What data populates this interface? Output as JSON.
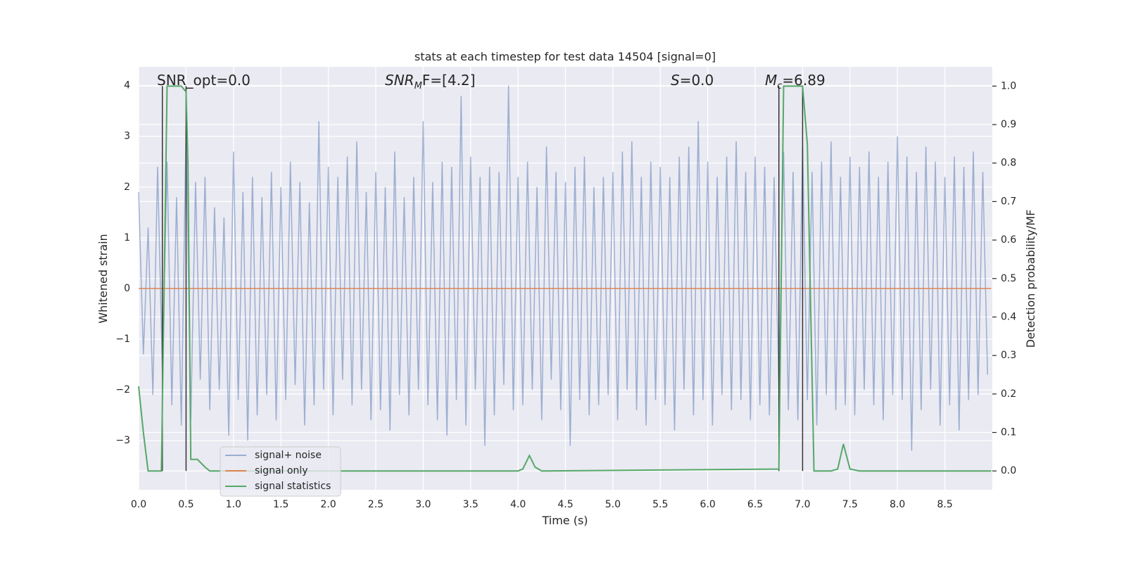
{
  "chart_data": {
    "type": "line",
    "title": "stats at each timestep for test data 14504 [signal=0]",
    "xlabel": "Time (s)",
    "ylabel": "Whitened strain",
    "y2label": "Detection probability/MF",
    "xlim": [
      0,
      9.0
    ],
    "xticks": [
      {
        "value": 0,
        "label": "0.0"
      },
      {
        "value": 0.5,
        "label": "0.5"
      },
      {
        "value": 1,
        "label": "1.0"
      },
      {
        "value": 1.5,
        "label": "1.5"
      },
      {
        "value": 2,
        "label": "2.0"
      },
      {
        "value": 2.5,
        "label": "2.5"
      },
      {
        "value": 3,
        "label": "3.0"
      },
      {
        "value": 3.5,
        "label": "3.5"
      },
      {
        "value": 4,
        "label": "4.0"
      },
      {
        "value": 4.5,
        "label": "4.5"
      },
      {
        "value": 5,
        "label": "5.0"
      },
      {
        "value": 5.5,
        "label": "5.5"
      },
      {
        "value": 6,
        "label": "6.0"
      },
      {
        "value": 6.5,
        "label": "6.5"
      },
      {
        "value": 7,
        "label": "7.0"
      },
      {
        "value": 7.5,
        "label": "7.5"
      },
      {
        "value": 8,
        "label": "8.0"
      },
      {
        "value": 8.5,
        "label": "8.5"
      }
    ],
    "ylim": [
      -3.97,
      4.37
    ],
    "yticks": [
      {
        "value": -3,
        "label": "−3"
      },
      {
        "value": -2,
        "label": "−2"
      },
      {
        "value": -1,
        "label": "−1"
      },
      0,
      1,
      2,
      3,
      4
    ],
    "y2lim": [
      -0.049,
      1.05
    ],
    "y2ticks": [
      {
        "value": 0,
        "label": "0.0"
      },
      {
        "value": 0.1,
        "label": "0.1"
      },
      {
        "value": 0.2,
        "label": "0.2"
      },
      {
        "value": 0.3,
        "label": "0.3"
      },
      {
        "value": 0.4,
        "label": "0.4"
      },
      {
        "value": 0.5,
        "label": "0.5"
      },
      {
        "value": 0.6,
        "label": "0.6"
      },
      {
        "value": 0.7,
        "label": "0.7"
      },
      {
        "value": 0.8,
        "label": "0.8"
      },
      {
        "value": 0.9,
        "label": "0.9"
      },
      {
        "value": 1,
        "label": "1.0"
      }
    ],
    "grid": true,
    "legend": "lower left",
    "series": [
      {
        "name": "signal+ noise",
        "color": "#4c72b0",
        "alpha": 0.5,
        "x": [
          0,
          0.05,
          0.1,
          0.15,
          0.2,
          0.25,
          0.3,
          0.35,
          0.4,
          0.45,
          0.5,
          0.55,
          0.6,
          0.65,
          0.7,
          0.75,
          0.8,
          0.85,
          0.9,
          0.95,
          1,
          1.05,
          1.1,
          1.15,
          1.2,
          1.25,
          1.3,
          1.35,
          1.4,
          1.45,
          1.5,
          1.55,
          1.6,
          1.65,
          1.7,
          1.75,
          1.8,
          1.85,
          1.9,
          1.95,
          2,
          2.05,
          2.1,
          2.15,
          2.2,
          2.25,
          2.3,
          2.35,
          2.4,
          2.45,
          2.5,
          2.55,
          2.6,
          2.65,
          2.7,
          2.75,
          2.8,
          2.85,
          2.9,
          2.95,
          3,
          3.05,
          3.1,
          3.15,
          3.2,
          3.25,
          3.3,
          3.35,
          3.4,
          3.45,
          3.5,
          3.55,
          3.6,
          3.65,
          3.7,
          3.75,
          3.8,
          3.85,
          3.9,
          3.95,
          4,
          4.05,
          4.1,
          4.15,
          4.2,
          4.25,
          4.3,
          4.35,
          4.4,
          4.45,
          4.5,
          4.55,
          4.6,
          4.65,
          4.7,
          4.75,
          4.8,
          4.85,
          4.9,
          4.95,
          5,
          5.05,
          5.1,
          5.15,
          5.2,
          5.25,
          5.3,
          5.35,
          5.4,
          5.45,
          5.5,
          5.55,
          5.6,
          5.65,
          5.7,
          5.75,
          5.8,
          5.85,
          5.9,
          5.95,
          6,
          6.05,
          6.1,
          6.15,
          6.2,
          6.25,
          6.3,
          6.35,
          6.4,
          6.45,
          6.5,
          6.55,
          6.6,
          6.65,
          6.7,
          6.75,
          6.8,
          6.85,
          6.9,
          6.95,
          7,
          7.05,
          7.1,
          7.15,
          7.2,
          7.25,
          7.3,
          7.35,
          7.4,
          7.45,
          7.5,
          7.55,
          7.6,
          7.65,
          7.7,
          7.75,
          7.8,
          7.85,
          7.9,
          7.95,
          8,
          8.05,
          8.1,
          8.15,
          8.2,
          8.25,
          8.3,
          8.35,
          8.4,
          8.45,
          8.5,
          8.55,
          8.6,
          8.65,
          8.7,
          8.75,
          8.8,
          8.85,
          8.9,
          8.95
        ],
        "values": [
          1.9,
          -1.3,
          1.2,
          -2.1,
          2.4,
          -1.6,
          2.5,
          -2.3,
          1.8,
          -2.7,
          3.2,
          -2.6,
          2.1,
          -1.8,
          2.2,
          -2.4,
          1.6,
          -2.0,
          1.4,
          -2.9,
          2.7,
          -2.2,
          1.9,
          -3.0,
          2.2,
          -2.5,
          1.8,
          -2.1,
          2.3,
          -2.6,
          2.0,
          -2.2,
          2.5,
          -1.9,
          2.1,
          -2.7,
          1.7,
          -2.3,
          3.3,
          -2.0,
          2.4,
          -2.5,
          2.2,
          -1.8,
          2.6,
          -2.3,
          2.9,
          -2.0,
          1.9,
          -2.6,
          2.3,
          -2.4,
          2.0,
          -2.8,
          2.7,
          -2.1,
          1.8,
          -2.5,
          2.2,
          -2.0,
          3.3,
          -2.3,
          2.1,
          -2.6,
          2.5,
          -2.9,
          2.4,
          -2.2,
          3.8,
          -2.7,
          2.6,
          -2.0,
          2.2,
          -3.1,
          2.4,
          -2.5,
          2.3,
          -1.9,
          4.0,
          -2.4,
          2.2,
          -2.3,
          2.5,
          -2.0,
          2.0,
          -2.6,
          2.8,
          -1.8,
          2.3,
          -2.4,
          2.1,
          -3.1,
          2.4,
          -2.2,
          2.6,
          -2.5,
          2.0,
          -2.3,
          2.2,
          -2.1,
          2.3,
          -2.6,
          2.7,
          -2.0,
          2.9,
          -2.4,
          2.2,
          -2.7,
          2.5,
          -2.2,
          2.4,
          -2.3,
          2.2,
          -2.8,
          2.6,
          -2.0,
          2.8,
          -2.5,
          3.3,
          -2.2,
          2.5,
          -2.7,
          2.2,
          -2.1,
          2.6,
          -2.4,
          2.9,
          -2.2,
          2.3,
          -2.6,
          2.6,
          -2.3,
          2.4,
          -2.5,
          2.2,
          -2.0,
          2.7,
          -2.4,
          2.3,
          -2.6,
          2.8,
          -2.2,
          2.3,
          -2.7,
          2.5,
          -2.1,
          2.9,
          -2.4,
          2.2,
          -2.3,
          2.6,
          -2.5,
          2.4,
          -2.0,
          2.7,
          -2.3,
          2.2,
          -2.6,
          2.5,
          -2.1,
          3.0,
          -2.2,
          2.6,
          -3.2,
          2.3,
          -2.4,
          2.8,
          -2.0,
          2.5,
          -2.7,
          2.2,
          -2.3,
          2.6,
          -2.8,
          2.4,
          -2.2,
          2.7,
          -2.1,
          2.3,
          -1.7
        ]
      },
      {
        "name": "signal only",
        "color": "#dd8452",
        "alpha": 1,
        "x": [
          0,
          8.99
        ],
        "values": [
          0,
          0
        ]
      },
      {
        "name": "signal statistics",
        "color": "#55a868",
        "alpha": 1,
        "axis": "y2",
        "x": [
          0,
          0.05,
          0.1,
          0.2,
          0.24,
          0.27,
          0.3,
          0.45,
          0.5,
          0.52,
          0.55,
          0.62,
          0.7,
          0.75,
          4.0,
          4.05,
          4.12,
          4.18,
          4.25,
          6.75,
          6.8,
          7.0,
          7.05,
          7.12,
          7.3,
          7.37,
          7.43,
          7.5,
          7.6,
          8.99
        ],
        "values": [
          0.22,
          0.1,
          0,
          0,
          0,
          0.5,
          1,
          1,
          0.985,
          0.8,
          0.03,
          0.03,
          0.01,
          0,
          0,
          0.005,
          0.04,
          0.01,
          0,
          0.005,
          1,
          1,
          0.85,
          0,
          0,
          0.005,
          0.07,
          0.005,
          0,
          0
        ]
      }
    ],
    "vlines": [
      0.25,
      0.5,
      6.75,
      7.0
    ],
    "vline_color": "#333333",
    "annotations": [
      {
        "main": "SNR_opt=0.0"
      },
      {
        "main": "SNR",
        "sub": "M",
        "rest": "F=[4.2]",
        "italic": true
      },
      {
        "main": "S",
        "rest": "=0.0",
        "italic": true
      },
      {
        "main": "M",
        "sub": "c",
        "rest": "=6.89",
        "italic": true
      }
    ]
  }
}
